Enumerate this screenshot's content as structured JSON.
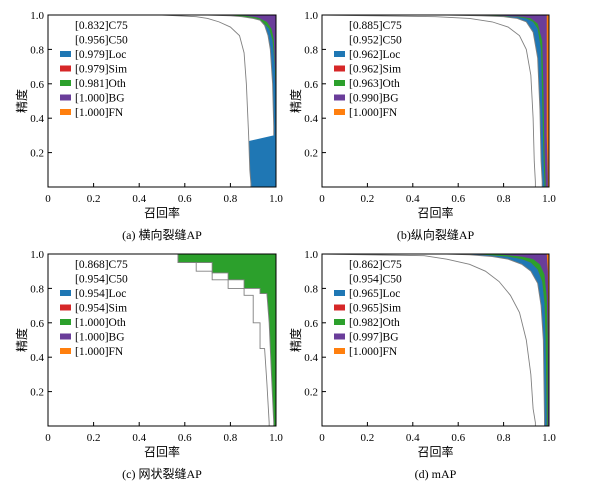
{
  "colors": {
    "Loc": "#1f77b4",
    "Sim": "#d62728",
    "Oth": "#2ca02c",
    "BG": "#6a3d9a",
    "FN": "#ff7f0e",
    "C75": "#ffffff",
    "C50": "#ffffff",
    "curve": "#808080"
  },
  "chart_data": [
    {
      "type": "area",
      "title": "(a) 横向裂缝AP",
      "xlabel": "召回率",
      "ylabel": "精度",
      "xlim": [
        0,
        1
      ],
      "ylim": [
        0,
        1
      ],
      "xticks": [
        "0",
        "0.2",
        "0.4",
        "0.6",
        "0.8",
        "1.0"
      ],
      "yticks": [
        "0.2",
        "0.4",
        "0.6",
        "0.8",
        "1.0"
      ],
      "legend": [
        {
          "key": "C75",
          "label": "[0.832]C75",
          "swatch": false
        },
        {
          "key": "C50",
          "label": "[0.956]C50",
          "swatch": false
        },
        {
          "key": "Loc",
          "label": "[0.979]Loc",
          "swatch": true
        },
        {
          "key": "Sim",
          "label": "[0.979]Sim",
          "swatch": true
        },
        {
          "key": "Oth",
          "label": "[0.981]Oth",
          "swatch": true
        },
        {
          "key": "BG",
          "label": "[1.000]BG",
          "swatch": true
        },
        {
          "key": "FN",
          "label": "[1.000]FN",
          "swatch": true
        }
      ],
      "series": [
        {
          "name": "C75",
          "x": [
            0,
            0.5,
            0.65,
            0.7,
            0.75,
            0.8,
            0.84,
            0.86,
            0.87,
            0.88,
            0.885,
            0.89,
            0.89
          ],
          "y": [
            1,
            1,
            0.99,
            0.98,
            0.96,
            0.93,
            0.88,
            0.78,
            0.6,
            0.3,
            0.1,
            0.02,
            0
          ]
        },
        {
          "name": "C50",
          "x": [
            0,
            0.6,
            0.7,
            0.8,
            0.85,
            0.9,
            0.93,
            0.95,
            0.965,
            0.975,
            0.985,
            0.99,
            0.99
          ],
          "y": [
            1,
            1,
            1,
            0.995,
            0.99,
            0.98,
            0.97,
            0.94,
            0.88,
            0.8,
            0.6,
            0.35,
            0.3
          ]
        },
        {
          "name": "Loc",
          "x": [
            0,
            0.78,
            0.85,
            0.9,
            0.94,
            0.97,
            0.985,
            0.995,
            1,
            1
          ],
          "y": [
            1,
            1,
            0.99,
            0.98,
            0.96,
            0.92,
            0.85,
            0.7,
            0.5,
            0
          ]
        },
        {
          "name": "Sim",
          "x": [
            0,
            0.78,
            0.85,
            0.9,
            0.94,
            0.97,
            0.985,
            0.995,
            1,
            1
          ],
          "y": [
            1,
            1,
            0.99,
            0.98,
            0.96,
            0.92,
            0.85,
            0.7,
            0.5,
            0
          ]
        },
        {
          "name": "Oth",
          "x": [
            0,
            0.8,
            0.87,
            0.92,
            0.96,
            0.98,
            0.99,
            1,
            1
          ],
          "y": [
            1,
            1,
            0.995,
            0.985,
            0.96,
            0.92,
            0.86,
            0.6,
            0
          ]
        },
        {
          "name": "BG",
          "x": [
            0,
            1,
            1
          ],
          "y": [
            1,
            1,
            0
          ]
        },
        {
          "name": "FN",
          "x": [
            0,
            1,
            1
          ],
          "y": [
            1,
            1,
            0
          ]
        }
      ]
    },
    {
      "type": "area",
      "title": "(b)纵向裂缝AP",
      "xlabel": "召回率",
      "ylabel": "精度",
      "xlim": [
        0,
        1
      ],
      "ylim": [
        0,
        1
      ],
      "xticks": [
        "0",
        "0.2",
        "0.4",
        "0.6",
        "0.8",
        "1.0"
      ],
      "yticks": [
        "0.2",
        "0.4",
        "0.6",
        "0.8",
        "1.0"
      ],
      "legend": [
        {
          "key": "C75",
          "label": "[0.885]C75",
          "swatch": false
        },
        {
          "key": "C50",
          "label": "[0.952]C50",
          "swatch": false
        },
        {
          "key": "Loc",
          "label": "[0.962]Loc",
          "swatch": true
        },
        {
          "key": "Sim",
          "label": "[0.962]Sim",
          "swatch": true
        },
        {
          "key": "Oth",
          "label": "[0.963]Oth",
          "swatch": true
        },
        {
          "key": "BG",
          "label": "[0.990]BG",
          "swatch": true
        },
        {
          "key": "FN",
          "label": "[1.000]FN",
          "swatch": true
        }
      ],
      "series": [
        {
          "name": "C75",
          "x": [
            0,
            0.5,
            0.65,
            0.75,
            0.82,
            0.87,
            0.9,
            0.92,
            0.93,
            0.935,
            0.94,
            0.94
          ],
          "y": [
            1,
            0.99,
            0.98,
            0.96,
            0.93,
            0.88,
            0.8,
            0.65,
            0.4,
            0.15,
            0.03,
            0
          ]
        },
        {
          "name": "C50",
          "x": [
            0,
            0.55,
            0.7,
            0.8,
            0.86,
            0.9,
            0.93,
            0.95,
            0.96,
            0.965,
            0.97,
            0.97
          ],
          "y": [
            1,
            1,
            0.995,
            0.99,
            0.98,
            0.96,
            0.9,
            0.75,
            0.45,
            0.15,
            0.03,
            0
          ]
        },
        {
          "name": "Loc",
          "x": [
            0,
            0.6,
            0.75,
            0.85,
            0.9,
            0.93,
            0.95,
            0.965,
            0.97,
            0.975,
            0.98,
            0.98
          ],
          "y": [
            1,
            1,
            0.995,
            0.99,
            0.98,
            0.96,
            0.92,
            0.8,
            0.5,
            0.2,
            0.03,
            0
          ]
        },
        {
          "name": "Sim",
          "x": [
            0,
            0.6,
            0.75,
            0.85,
            0.9,
            0.93,
            0.95,
            0.965,
            0.97,
            0.975,
            0.98,
            0.98
          ],
          "y": [
            1,
            1,
            0.995,
            0.99,
            0.98,
            0.96,
            0.92,
            0.8,
            0.5,
            0.2,
            0.03,
            0
          ]
        },
        {
          "name": "Oth",
          "x": [
            0,
            0.65,
            0.8,
            0.88,
            0.92,
            0.95,
            0.97,
            0.975,
            0.98,
            0.985,
            0.985
          ],
          "y": [
            1,
            1,
            0.995,
            0.99,
            0.98,
            0.95,
            0.85,
            0.6,
            0.2,
            0.03,
            0
          ]
        },
        {
          "name": "BG",
          "x": [
            0,
            0.99,
            0.99,
            0.995,
            0.995
          ],
          "y": [
            1,
            1,
            0.3,
            0.05,
            0
          ]
        },
        {
          "name": "FN",
          "x": [
            0,
            1,
            1
          ],
          "y": [
            1,
            1,
            0
          ]
        }
      ]
    },
    {
      "type": "area",
      "title": "(c) 网状裂缝AP",
      "xlabel": "召回率",
      "ylabel": "精度",
      "xlim": [
        0,
        1
      ],
      "ylim": [
        0,
        1
      ],
      "xticks": [
        "0",
        "0.2",
        "0.4",
        "0.6",
        "0.8",
        "1.0"
      ],
      "yticks": [
        "0.2",
        "0.4",
        "0.6",
        "0.8",
        "1.0"
      ],
      "legend": [
        {
          "key": "C75",
          "label": "[0.868]C75",
          "swatch": false
        },
        {
          "key": "C50",
          "label": "[0.954]C50",
          "swatch": false
        },
        {
          "key": "Loc",
          "label": "[0.954]Loc",
          "swatch": true
        },
        {
          "key": "Sim",
          "label": "[0.954]Sim",
          "swatch": true
        },
        {
          "key": "Oth",
          "label": "[1.000]Oth",
          "swatch": true
        },
        {
          "key": "BG",
          "label": "[1.000]BG",
          "swatch": true
        },
        {
          "key": "FN",
          "label": "[1.000]FN",
          "swatch": true
        }
      ],
      "series": [
        {
          "name": "C75",
          "x": [
            0,
            0.57,
            0.57,
            0.65,
            0.65,
            0.72,
            0.72,
            0.79,
            0.79,
            0.86,
            0.86,
            0.9,
            0.9,
            0.93,
            0.93,
            0.95,
            0.96,
            0.97,
            0.97
          ],
          "y": [
            1,
            1,
            0.95,
            0.95,
            0.9,
            0.9,
            0.85,
            0.85,
            0.8,
            0.8,
            0.76,
            0.76,
            0.6,
            0.6,
            0.45,
            0.45,
            0.25,
            0.02,
            0
          ]
        },
        {
          "name": "C50",
          "x": [
            0,
            0.57,
            0.57,
            0.72,
            0.72,
            0.79,
            0.79,
            0.86,
            0.86,
            0.93,
            0.93,
            0.96,
            0.97,
            0.98,
            0.99,
            0.99
          ],
          "y": [
            1,
            1,
            0.95,
            0.95,
            0.89,
            0.89,
            0.85,
            0.85,
            0.8,
            0.8,
            0.77,
            0.77,
            0.6,
            0.3,
            0.02,
            0
          ]
        },
        {
          "name": "Loc",
          "x": [
            0,
            0.57,
            0.57,
            0.72,
            0.72,
            0.79,
            0.79,
            0.86,
            0.86,
            0.93,
            0.93,
            0.96,
            0.97,
            0.98,
            0.99,
            0.99
          ],
          "y": [
            1,
            1,
            0.95,
            0.95,
            0.89,
            0.89,
            0.85,
            0.85,
            0.8,
            0.8,
            0.77,
            0.77,
            0.6,
            0.3,
            0.02,
            0
          ]
        },
        {
          "name": "Sim",
          "x": [
            0,
            0.57,
            0.57,
            0.72,
            0.72,
            0.79,
            0.79,
            0.86,
            0.86,
            0.93,
            0.93,
            0.96,
            0.97,
            0.98,
            0.99,
            0.99
          ],
          "y": [
            1,
            1,
            0.95,
            0.95,
            0.89,
            0.89,
            0.85,
            0.85,
            0.8,
            0.8,
            0.77,
            0.77,
            0.6,
            0.3,
            0.02,
            0
          ]
        },
        {
          "name": "Oth",
          "x": [
            0,
            1,
            1
          ],
          "y": [
            1,
            1,
            0
          ]
        },
        {
          "name": "BG",
          "x": [
            0,
            1,
            1
          ],
          "y": [
            1,
            1,
            0
          ]
        },
        {
          "name": "FN",
          "x": [
            0,
            1,
            1
          ],
          "y": [
            1,
            1,
            0
          ]
        }
      ]
    },
    {
      "type": "area",
      "title": "(d) mAP",
      "xlabel": "召回率",
      "ylabel": "精度",
      "xlim": [
        0,
        1
      ],
      "ylim": [
        0,
        1
      ],
      "xticks": [
        "0",
        "0.2",
        "0.4",
        "0.6",
        "0.8",
        "1.0"
      ],
      "yticks": [
        "0.2",
        "0.4",
        "0.6",
        "0.8",
        "1.0"
      ],
      "legend": [
        {
          "key": "C75",
          "label": "[0.862]C75",
          "swatch": false
        },
        {
          "key": "C50",
          "label": "[0.954]C50",
          "swatch": false
        },
        {
          "key": "Loc",
          "label": "[0.965]Loc",
          "swatch": true
        },
        {
          "key": "Sim",
          "label": "[0.965]Sim",
          "swatch": true
        },
        {
          "key": "Oth",
          "label": "[0.982]Oth",
          "swatch": true
        },
        {
          "key": "BG",
          "label": "[0.997]BG",
          "swatch": true
        },
        {
          "key": "FN",
          "label": "[1.000]FN",
          "swatch": true
        }
      ],
      "series": [
        {
          "name": "C75",
          "x": [
            0,
            0.45,
            0.55,
            0.65,
            0.72,
            0.78,
            0.83,
            0.87,
            0.9,
            0.92,
            0.93,
            0.94,
            0.94
          ],
          "y": [
            1,
            0.99,
            0.97,
            0.94,
            0.9,
            0.84,
            0.76,
            0.66,
            0.5,
            0.3,
            0.1,
            0.02,
            0
          ]
        },
        {
          "name": "C50",
          "x": [
            0,
            0.55,
            0.65,
            0.75,
            0.82,
            0.88,
            0.92,
            0.95,
            0.965,
            0.975,
            0.98,
            0.98
          ],
          "y": [
            1,
            1,
            0.995,
            0.985,
            0.97,
            0.94,
            0.9,
            0.83,
            0.7,
            0.5,
            0.05,
            0
          ]
        },
        {
          "name": "Loc",
          "x": [
            0,
            0.6,
            0.72,
            0.82,
            0.88,
            0.92,
            0.95,
            0.97,
            0.98,
            0.985,
            0.99,
            0.99
          ],
          "y": [
            1,
            1,
            0.995,
            0.985,
            0.97,
            0.95,
            0.91,
            0.84,
            0.72,
            0.5,
            0.05,
            0
          ]
        },
        {
          "name": "Sim",
          "x": [
            0,
            0.6,
            0.72,
            0.82,
            0.88,
            0.92,
            0.95,
            0.97,
            0.98,
            0.985,
            0.99,
            0.99
          ],
          "y": [
            1,
            1,
            0.995,
            0.985,
            0.97,
            0.95,
            0.91,
            0.84,
            0.72,
            0.5,
            0.05,
            0
          ]
        },
        {
          "name": "Oth",
          "x": [
            0,
            0.7,
            0.8,
            0.88,
            0.93,
            0.96,
            0.98,
            0.99,
            0.995,
            0.995
          ],
          "y": [
            1,
            1,
            0.995,
            0.985,
            0.97,
            0.94,
            0.88,
            0.75,
            0.5,
            0
          ]
        },
        {
          "name": "BG",
          "x": [
            0,
            0.99,
            0.995,
            0.997,
            0.998,
            0.998
          ],
          "y": [
            1,
            1,
            0.9,
            0.6,
            0.3,
            0
          ]
        },
        {
          "name": "FN",
          "x": [
            0,
            1,
            1
          ],
          "y": [
            1,
            1,
            0
          ]
        }
      ]
    }
  ]
}
